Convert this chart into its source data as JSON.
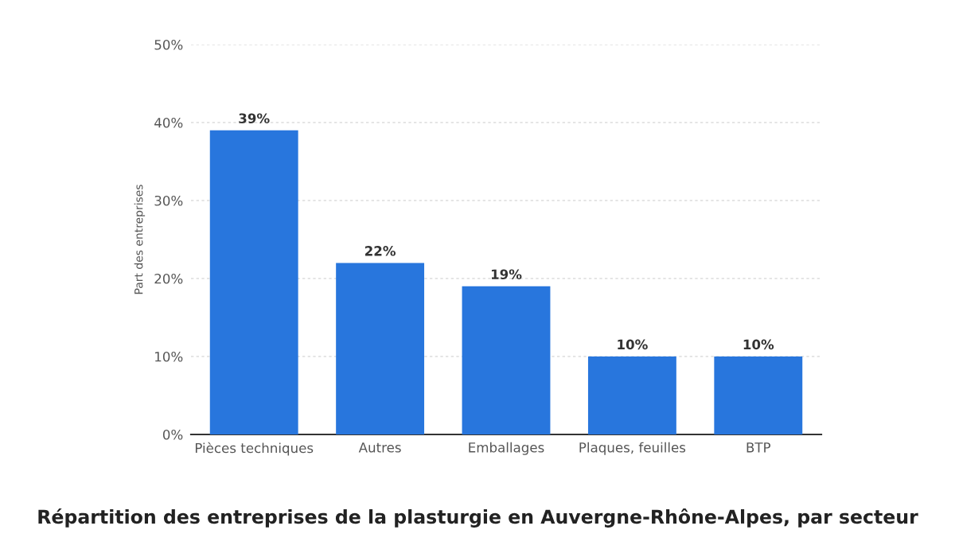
{
  "chart_data": {
    "type": "bar",
    "title": "Répartition des entreprises de la plasturgie en Auvergne-Rhône-Alpes, par secteur",
    "ylabel": "Part des entreprises",
    "categories": [
      "Pièces techniques",
      "Autres",
      "Emballages",
      "Plaques, feuilles",
      "BTP"
    ],
    "values": [
      39,
      22,
      19,
      10,
      10
    ],
    "color": "#2876dd",
    "value_labels": [
      "39%",
      "22%",
      "19%",
      "10%",
      "10%"
    ],
    "ylim": [
      0,
      50
    ],
    "yticks": [
      {
        "value": 0,
        "label": "0%"
      },
      {
        "value": 10,
        "label": "10%"
      },
      {
        "value": 20,
        "label": "20%"
      },
      {
        "value": 30,
        "label": "30%"
      },
      {
        "value": 40,
        "label": "40%"
      },
      {
        "value": 50,
        "label": "50%"
      }
    ],
    "grid": "y"
  }
}
